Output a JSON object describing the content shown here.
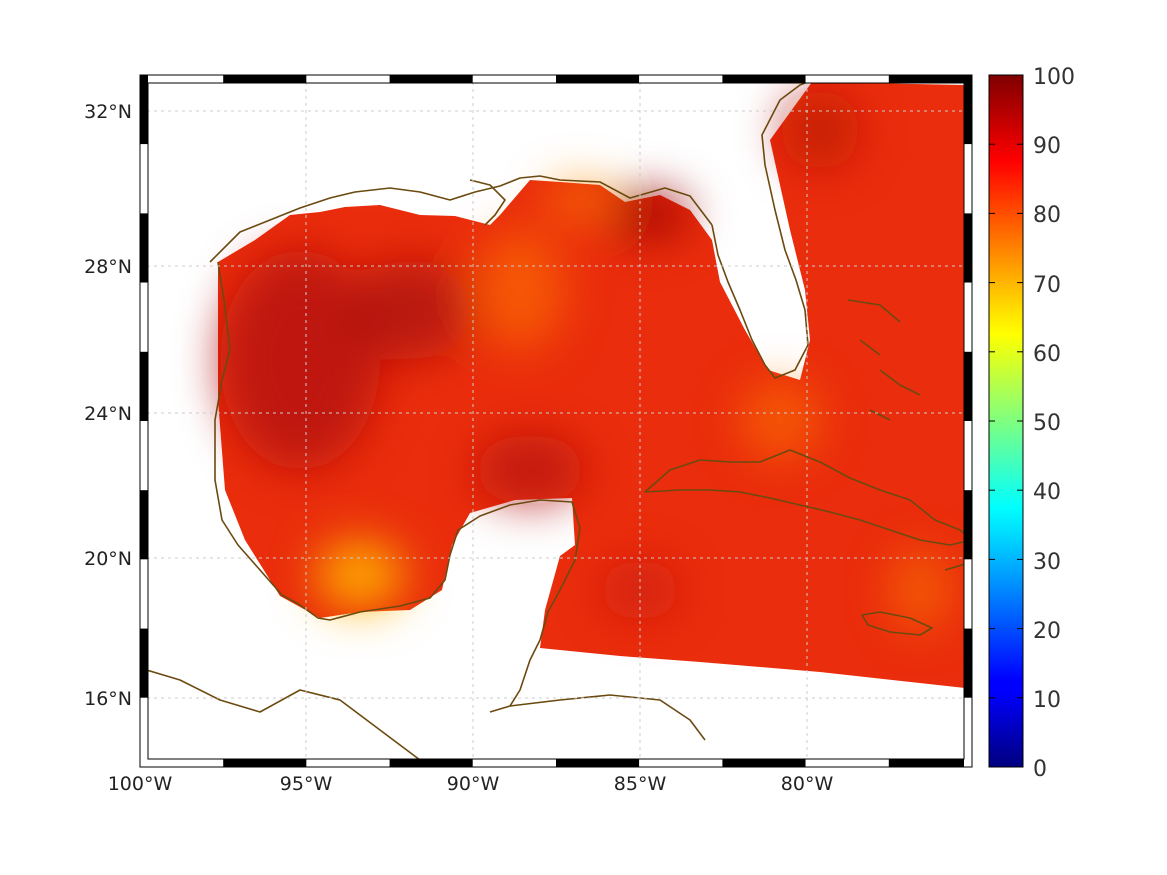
{
  "map": {
    "lon_ticks": [
      "100°W",
      "95°W",
      "90°W",
      "85°W",
      "80°W"
    ],
    "lat_ticks": [
      "32°N",
      "28°N",
      "24°N",
      "20°N",
      "16°N"
    ],
    "lon_range": [
      -100,
      -75
    ],
    "lat_range": [
      14.2,
      33
    ]
  },
  "colorbar": {
    "ticks": [
      "100",
      "90",
      "80",
      "70",
      "60",
      "50",
      "40",
      "30",
      "20",
      "10",
      "0"
    ],
    "range": [
      0,
      100
    ],
    "colormap": "jet"
  },
  "colors": {
    "coastline": "#6b4a10",
    "field_base": "#ea2a0a",
    "field_high": "#a00808",
    "field_low": "#ff8a00",
    "grid": "#cccccc"
  }
}
